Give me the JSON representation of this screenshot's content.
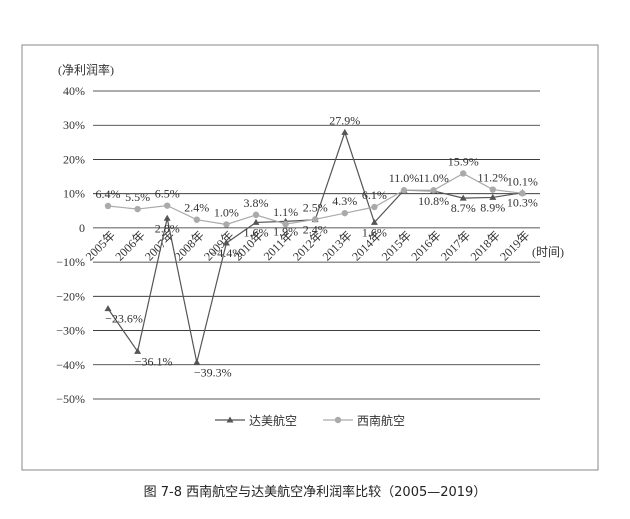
{
  "chart_data": {
    "type": "line",
    "ylabel": "(净利润率)",
    "xlabel": "(时间)",
    "caption": "图  7-8   西南航空与达美航空净利润率比较（2005—2019）",
    "categories": [
      "2005年",
      "2006年",
      "2007年",
      "2008年",
      "2009年",
      "2010年",
      "2011年",
      "2012年",
      "2013年",
      "2014年",
      "2015年",
      "2016年",
      "2017年",
      "2018年",
      "2019年"
    ],
    "series": [
      {
        "name": "达美航空",
        "color": "#555555",
        "marker": "triangle",
        "values": [
          -23.6,
          -36.1,
          2.8,
          -39.3,
          -4.4,
          1.6,
          1.9,
          2.4,
          27.9,
          1.6,
          11.0,
          10.8,
          8.7,
          8.9,
          10.3
        ],
        "value_labels": [
          "−23.6%",
          "−36.1%",
          "2.8%",
          "−39.3%",
          "−4.4%",
          "1.6%",
          "1.9%",
          "2.4%",
          "27.9%",
          "1.6%",
          null,
          "10.8%",
          "8.7%",
          "8.9%",
          "10.3%"
        ]
      },
      {
        "name": "西南航空",
        "color": "#aaaaaa",
        "marker": "circle",
        "values": [
          6.4,
          5.5,
          6.5,
          2.4,
          1.0,
          3.8,
          1.1,
          2.5,
          4.3,
          6.1,
          11.0,
          11.0,
          15.9,
          11.2,
          10.1
        ],
        "value_labels": [
          "6.4%",
          "5.5%",
          "6.5%",
          "2.4%",
          "1.0%",
          "3.8%",
          "1.1%",
          "2.5%",
          "4.3%",
          "6.1%",
          "11.0%",
          "11.0%",
          "15.9%",
          "11.2%",
          "10.1%"
        ]
      }
    ],
    "ylim": [
      -50,
      40
    ],
    "yticks": [
      {
        "value": 40,
        "label": "40%"
      },
      {
        "value": 30,
        "label": "30%"
      },
      {
        "value": 20,
        "label": "20%"
      },
      {
        "value": 10,
        "label": "10%"
      },
      0,
      {
        "value": -10,
        "label": "−10%"
      },
      {
        "value": -20,
        "label": "−20%"
      },
      {
        "value": -30,
        "label": "−30%"
      },
      {
        "value": -40,
        "label": "−40%"
      },
      {
        "value": -50,
        "label": "−50%"
      }
    ],
    "grid": true
  }
}
